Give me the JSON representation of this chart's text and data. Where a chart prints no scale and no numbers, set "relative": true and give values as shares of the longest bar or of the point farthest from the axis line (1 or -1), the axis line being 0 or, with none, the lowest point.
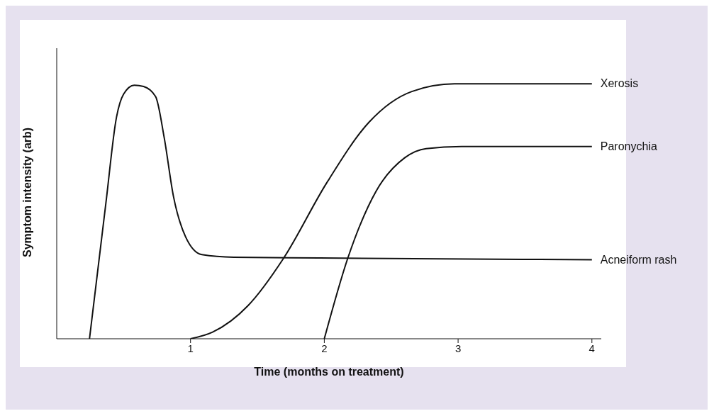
{
  "chart_data": {
    "type": "line",
    "relative": true,
    "xlabel": "Time (months on treatment)",
    "ylabel": "Symptom intensity (arb)",
    "xlim": [
      0,
      4.07
    ],
    "xticks": [
      1,
      2,
      3,
      4
    ],
    "grid": false,
    "legend": false,
    "marker": "none",
    "line_style": "solid",
    "series": [
      {
        "name": "Xerosis",
        "color": "#111111",
        "x": [
          1,
          1.165,
          1.43,
          1.697,
          2.016,
          2.335,
          2.654,
          2.973,
          4
        ],
        "values": [
          0,
          0.026,
          0.13,
          0.317,
          0.61,
          0.85,
          0.97,
          1,
          1
        ]
      },
      {
        "name": "Paronychia",
        "color": "#111111",
        "x": [
          2,
          2.176,
          2.388,
          2.601,
          2.761,
          3.027,
          4
        ],
        "values": [
          0,
          0.317,
          0.58,
          0.71,
          0.746,
          0.754,
          0.754
        ]
      },
      {
        "name": "Acneiform rash",
        "color": "#111111",
        "x": [
          0.245,
          0.367,
          0.447,
          0.5,
          0.58,
          0.649,
          0.739,
          0.803,
          0.872,
          0.963,
          1.085,
          1.324,
          1.963,
          4
        ],
        "values": [
          0,
          0.53,
          0.87,
          0.96,
          0.995,
          0.99,
          0.95,
          0.79,
          0.56,
          0.4,
          0.33,
          0.32,
          0.317,
          0.31
        ]
      }
    ]
  }
}
